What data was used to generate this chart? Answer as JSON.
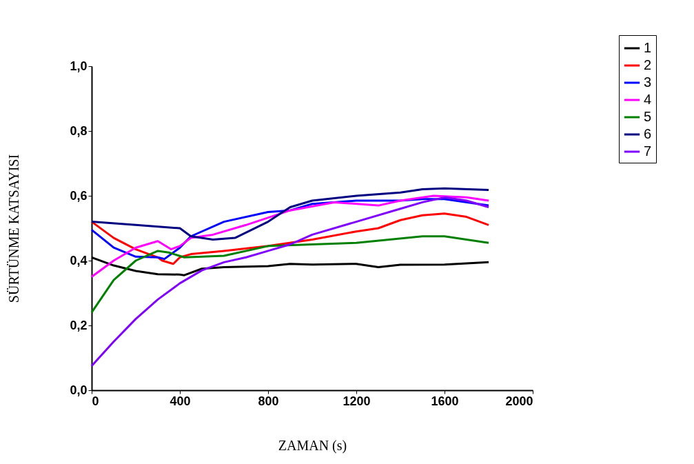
{
  "chart_data": {
    "type": "line",
    "xlabel": "ZAMAN (s)",
    "ylabel": "SÜRTÜNME KATSAYISI",
    "xlim": [
      0,
      2000
    ],
    "xticks": [
      0,
      400,
      800,
      {
        "value": 1200,
        "label": "1200"
      },
      {
        "value": 1600,
        "label": "1600"
      },
      {
        "value": 2000,
        "label": "2000"
      }
    ],
    "ylim": [
      0,
      1
    ],
    "yticks": [
      {
        "value": 0,
        "label": "0,0"
      },
      {
        "value": 0.2,
        "label": "0,2"
      },
      {
        "value": 0.4,
        "label": "0,4"
      },
      {
        "value": 0.6,
        "label": "0,6"
      },
      {
        "value": 0.8,
        "label": "0,8"
      },
      {
        "value": 1,
        "label": "1,0"
      }
    ],
    "grid": false,
    "legend": "top right",
    "marker": "none",
    "line_style": "solid",
    "series": [
      {
        "name": "1",
        "color": "#000000",
        "x": [
          0,
          100,
          200,
          300,
          400,
          420,
          500,
          600,
          800,
          900,
          1000,
          1200,
          1300,
          1400,
          1600,
          1800
        ],
        "values": [
          0.41,
          0.385,
          0.368,
          0.358,
          0.357,
          0.355,
          0.375,
          0.38,
          0.383,
          0.39,
          0.388,
          0.39,
          0.38,
          0.387,
          0.388,
          0.395
        ]
      },
      {
        "name": "2",
        "color": "#ff0000",
        "x": [
          0,
          100,
          200,
          300,
          320,
          370,
          400,
          450,
          600,
          800,
          1000,
          1200,
          1300,
          1400,
          1500,
          1600,
          1700,
          1800
        ],
        "values": [
          0.52,
          0.47,
          0.435,
          0.41,
          0.4,
          0.39,
          0.41,
          0.42,
          0.43,
          0.445,
          0.465,
          0.49,
          0.5,
          0.525,
          0.54,
          0.545,
          0.535,
          0.51
        ]
      },
      {
        "name": "3",
        "color": "#0000ff",
        "x": [
          0,
          100,
          200,
          300,
          330,
          400,
          450,
          600,
          800,
          900,
          1000,
          1200,
          1400,
          1500,
          1600,
          1800
        ],
        "values": [
          0.495,
          0.44,
          0.412,
          0.41,
          0.405,
          0.44,
          0.475,
          0.52,
          0.55,
          0.555,
          0.575,
          0.585,
          0.585,
          0.59,
          0.59,
          0.57
        ]
      },
      {
        "name": "4",
        "color": "#ff00ff",
        "x": [
          0,
          100,
          200,
          300,
          360,
          400,
          450,
          550,
          700,
          900,
          1100,
          1300,
          1400,
          1550,
          1700,
          1800
        ],
        "values": [
          0.35,
          0.4,
          0.44,
          0.46,
          0.435,
          0.445,
          0.47,
          0.48,
          0.51,
          0.555,
          0.58,
          0.57,
          0.585,
          0.6,
          0.595,
          0.585
        ]
      },
      {
        "name": "5",
        "color": "#008000",
        "x": [
          0,
          100,
          200,
          300,
          350,
          420,
          600,
          800,
          1000,
          1200,
          1350,
          1500,
          1600,
          1800
        ],
        "values": [
          0.24,
          0.34,
          0.4,
          0.43,
          0.425,
          0.41,
          0.415,
          0.445,
          0.45,
          0.455,
          0.465,
          0.475,
          0.475,
          0.455
        ]
      },
      {
        "name": "6",
        "color": "#000080",
        "x": [
          0,
          200,
          400,
          450,
          550,
          650,
          800,
          900,
          1000,
          1200,
          1400,
          1500,
          1600,
          1800
        ],
        "values": [
          0.52,
          0.51,
          0.5,
          0.475,
          0.465,
          0.47,
          0.52,
          0.565,
          0.585,
          0.6,
          0.61,
          0.62,
          0.623,
          0.618
        ]
      },
      {
        "name": "7",
        "color": "#8000ff",
        "x": [
          0,
          100,
          200,
          300,
          400,
          500,
          600,
          700,
          800,
          900,
          1000,
          1200,
          1400,
          1500,
          1600,
          1700,
          1800
        ],
        "values": [
          0.075,
          0.15,
          0.22,
          0.28,
          0.33,
          0.37,
          0.395,
          0.41,
          0.43,
          0.45,
          0.48,
          0.52,
          0.56,
          0.58,
          0.595,
          0.585,
          0.565
        ]
      }
    ]
  }
}
